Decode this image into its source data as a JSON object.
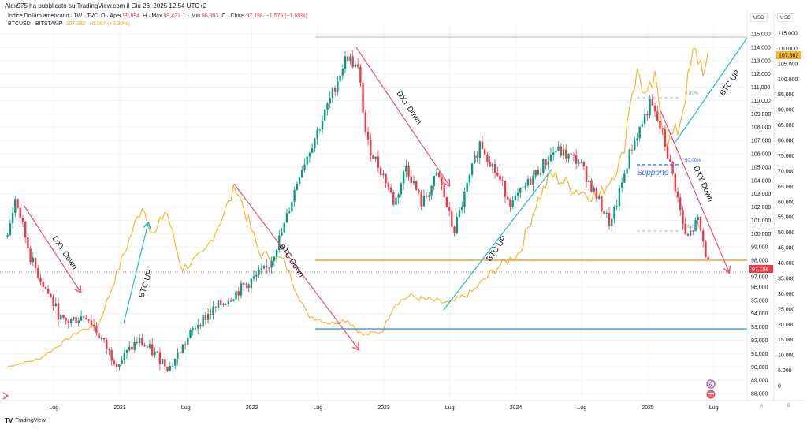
{
  "header": {
    "published": "Alex975 ha pubblicato su TradingView.com il Giu 26, 2025 12:54 UTC+2"
  },
  "legend": {
    "dxy": {
      "name": "Indice Dollaro americano · 1W · TVC",
      "o_label": "O · Aper.",
      "open": "99,094",
      "h_label": "H · Max.",
      "high": "99,421",
      "l_label": "L · Min.",
      "low": "96,997",
      "c_label": "C · Chius.",
      "close": "97,198",
      "change": "−1,576 (−1,60%)"
    },
    "btc": {
      "name": "BTCUSD · BITSTAMP",
      "price": "107.382",
      "change": "+6.367 (+6,30%)"
    }
  },
  "axes": {
    "left_currency": "USD",
    "right_currency": "USD",
    "left_ticks": [
      "115,000",
      "114,000",
      "113,000",
      "112,000",
      "111,000",
      "110,000",
      "109,000",
      "108,000",
      "107,000",
      "106,000",
      "105,000",
      "104,000",
      "103,000",
      "102,000",
      "101,000",
      "100,000",
      "99,000",
      "98,000",
      "97,000",
      "96,000",
      "95,000",
      "94,000",
      "93,000",
      "92,000",
      "91,000",
      "90,000",
      "89,000",
      "88,000"
    ],
    "right_ticks": [
      "115.000",
      "110.000",
      "105.000",
      "100.000",
      "95.000",
      "90.000",
      "85.000",
      "80.000",
      "75.000",
      "70.000",
      "65.000",
      "60.000",
      "55.000",
      "50.000",
      "45.000",
      "40.000",
      "35.000",
      "30.000",
      "25.000",
      "20.000",
      "15.000",
      "10.000",
      "5.000",
      "0"
    ],
    "time_ticks": [
      {
        "label": "Lug",
        "t": 2020.5
      },
      {
        "label": "2021",
        "t": 2021
      },
      {
        "label": "Lug",
        "t": 2021.5
      },
      {
        "label": "2022",
        "t": 2022
      },
      {
        "label": "Lug",
        "t": 2022.5
      },
      {
        "label": "2023",
        "t": 2023
      },
      {
        "label": "Lug",
        "t": 2023.5
      },
      {
        "label": "2024",
        "t": 2024
      },
      {
        "label": "Lug",
        "t": 2024.5
      },
      {
        "label": "2025",
        "t": 2025
      },
      {
        "label": "Lug",
        "t": 2025.5
      }
    ],
    "dxy_price_tag": "97,198",
    "btc_price_tag": "107.382",
    "scale_a": "A",
    "scale_b": "B"
  },
  "annotations": {
    "dxy_down_1": "DXY Down",
    "btc_up_1": "BTC UP",
    "btc_down": "BTC Down",
    "dxy_down_2": "DXY Down",
    "btc_up_2": "BTC UP",
    "btc_up_3": "BTC UP",
    "dxy_down_3": "DXY Down",
    "supporto": "Supporto",
    "fib_0": "0,00%",
    "fib_50": "50,00%",
    "fib_100": "100,00%"
  },
  "footer": {
    "brand": "TradingView",
    "logo": "TV"
  },
  "colors": {
    "up": "#089981",
    "down": "#f23645",
    "btc": "#f7b733",
    "cyan": "#22b8d6",
    "arrow_red": "#f0506e"
  },
  "chart_data": {
    "type": "candlestick+line",
    "title": "DXY (1W) vs BTCUSD",
    "x_unit": "decimal year",
    "xlim": [
      2020.1,
      2025.75
    ],
    "dxy": {
      "name": "Indice Dollaro americano",
      "axis": "left",
      "ylim": [
        87.3,
        115.5
      ],
      "keypoints": [
        [
          2020.15,
          99.8
        ],
        [
          2020.21,
          102.7
        ],
        [
          2020.33,
          98
        ],
        [
          2020.57,
          93.3
        ],
        [
          2020.75,
          93.9
        ],
        [
          2020.93,
          90.9
        ],
        [
          2020.99,
          90.3
        ],
        [
          2021.14,
          92
        ],
        [
          2021.38,
          90
        ],
        [
          2021.59,
          93.3
        ],
        [
          2021.88,
          95.6
        ],
        [
          2022.12,
          97.4
        ],
        [
          2022.24,
          100.4
        ],
        [
          2022.36,
          104.5
        ],
        [
          2022.54,
          108.7
        ],
        [
          2022.72,
          113.4
        ],
        [
          2022.81,
          112.2
        ],
        [
          2022.87,
          106.9
        ],
        [
          2023.02,
          103.9
        ],
        [
          2023.08,
          102.2
        ],
        [
          2023.17,
          105.1
        ],
        [
          2023.29,
          102.2
        ],
        [
          2023.41,
          104.5
        ],
        [
          2023.53,
          100.1
        ],
        [
          2023.73,
          106.9
        ],
        [
          2023.97,
          102.2
        ],
        [
          2024.15,
          104.5
        ],
        [
          2024.3,
          106.3
        ],
        [
          2024.48,
          105.4
        ],
        [
          2024.72,
          100.6
        ],
        [
          2024.87,
          106.3
        ],
        [
          2025.02,
          109.8
        ],
        [
          2025.11,
          107.5
        ],
        [
          2025.2,
          103.9
        ],
        [
          2025.29,
          99.5
        ],
        [
          2025.38,
          101
        ],
        [
          2025.47,
          97.2
        ]
      ]
    },
    "btc": {
      "name": "BTCUSD",
      "axis": "right",
      "unit": "thousand USD",
      "ylim": [
        -3,
        115
      ],
      "keypoints": [
        [
          2020.15,
          6.2
        ],
        [
          2020.39,
          8.7
        ],
        [
          2020.69,
          17.7
        ],
        [
          2020.84,
          20
        ],
        [
          2020.99,
          38
        ],
        [
          2021.08,
          48.6
        ],
        [
          2021.17,
          59
        ],
        [
          2021.26,
          48.6
        ],
        [
          2021.35,
          57.6
        ],
        [
          2021.47,
          38
        ],
        [
          2021.64,
          43
        ],
        [
          2021.82,
          59
        ],
        [
          2021.88,
          65.3
        ],
        [
          2022.06,
          43
        ],
        [
          2022.24,
          41
        ],
        [
          2022.42,
          23
        ],
        [
          2022.6,
          20.3
        ],
        [
          2022.72,
          21.6
        ],
        [
          2022.84,
          16.5
        ],
        [
          2022.99,
          17.7
        ],
        [
          2023.08,
          26.8
        ],
        [
          2023.2,
          29.3
        ],
        [
          2023.32,
          28
        ],
        [
          2023.5,
          26.8
        ],
        [
          2023.67,
          30.6
        ],
        [
          2023.85,
          38.3
        ],
        [
          2024.03,
          43.5
        ],
        [
          2024.15,
          59
        ],
        [
          2024.27,
          69
        ],
        [
          2024.45,
          64
        ],
        [
          2024.63,
          61.5
        ],
        [
          2024.81,
          74.4
        ],
        [
          2024.87,
          95
        ],
        [
          2024.93,
          102.6
        ],
        [
          2024.99,
          92.3
        ],
        [
          2025.05,
          100
        ],
        [
          2025.14,
          79.5
        ],
        [
          2025.23,
          83.4
        ],
        [
          2025.29,
          96.2
        ],
        [
          2025.35,
          109
        ],
        [
          2025.44,
          102.6
        ],
        [
          2025.47,
          107.4
        ]
      ]
    }
  }
}
